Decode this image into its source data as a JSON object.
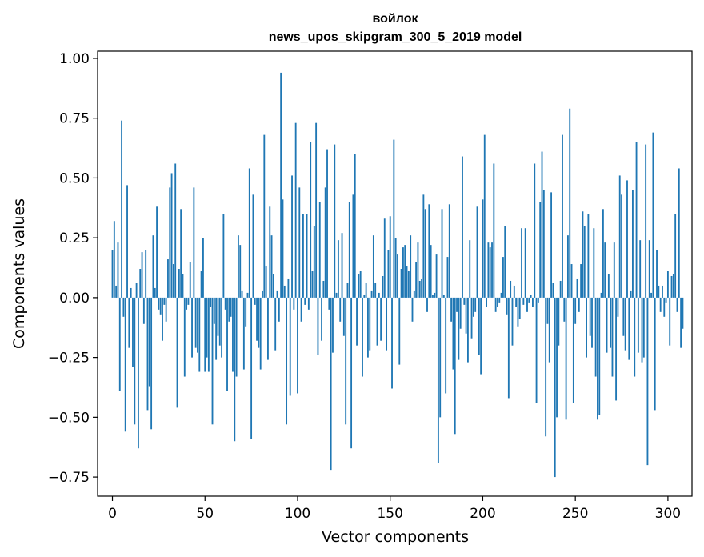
{
  "chart_data": {
    "type": "bar",
    "title": "войлок",
    "subtitle": "news_upos_skipgram_300_5_2019 model",
    "xlabel": "Vector components",
    "ylabel": "Components values",
    "xlim": [
      -8,
      313
    ],
    "ylim": [
      -0.83,
      1.03
    ],
    "xticks": [
      0,
      50,
      100,
      150,
      200,
      250,
      300
    ],
    "xtick_labels": [
      "0",
      "50",
      "100",
      "150",
      "200",
      "250",
      "300"
    ],
    "yticks": [
      1.0,
      0.75,
      0.5,
      0.25,
      0.0,
      -0.25,
      -0.5,
      -0.75
    ],
    "ytick_labels": [
      "1.00",
      "0.75",
      "0.50",
      "0.25",
      "0.00",
      "−0.25",
      "−0.50",
      "−0.75"
    ],
    "bar_color": "#1f77b4",
    "series": [
      {
        "name": "войлок",
        "values": [
          0.2,
          0.32,
          0.05,
          0.23,
          -0.39,
          0.74,
          -0.08,
          -0.56,
          0.47,
          -0.21,
          0.04,
          -0.29,
          -0.53,
          0.06,
          -0.63,
          0.12,
          0.19,
          -0.11,
          0.2,
          -0.47,
          -0.37,
          -0.55,
          0.26,
          0.04,
          0.38,
          -0.05,
          -0.07,
          -0.18,
          -0.03,
          -0.1,
          0.16,
          0.46,
          0.52,
          0.14,
          0.56,
          -0.46,
          0.12,
          0.37,
          0.1,
          -0.33,
          -0.05,
          -0.03,
          0.15,
          -0.25,
          0.46,
          -0.21,
          -0.23,
          -0.31,
          0.11,
          0.25,
          -0.31,
          -0.25,
          -0.31,
          -0.04,
          -0.53,
          -0.11,
          -0.26,
          -0.16,
          -0.2,
          -0.25,
          0.35,
          -0.05,
          -0.39,
          -0.1,
          -0.08,
          -0.31,
          -0.6,
          -0.33,
          0.26,
          0.22,
          0.03,
          -0.3,
          -0.12,
          0.02,
          0.54,
          -0.59,
          0.43,
          -0.03,
          -0.18,
          -0.21,
          -0.3,
          0.03,
          0.68,
          0.13,
          -0.26,
          0.38,
          0.26,
          0.1,
          -0.22,
          0.03,
          -0.1,
          0.94,
          0.41,
          0.05,
          -0.53,
          0.08,
          -0.41,
          0.51,
          -0.05,
          0.73,
          -0.4,
          0.46,
          -0.1,
          0.35,
          -0.03,
          0.35,
          -0.05,
          0.65,
          0.11,
          0.3,
          0.73,
          -0.24,
          0.4,
          -0.18,
          0.07,
          0.46,
          0.62,
          -0.05,
          -0.72,
          -0.23,
          0.64,
          0.02,
          0.24,
          -0.1,
          0.27,
          -0.16,
          -0.53,
          0.06,
          0.4,
          -0.63,
          0.43,
          0.6,
          -0.2,
          0.1,
          0.11,
          -0.33,
          0.01,
          0.06,
          -0.25,
          -0.22,
          0.03,
          0.26,
          0.06,
          -0.2,
          0.02,
          -0.18,
          0.09,
          0.33,
          -0.22,
          0.2,
          0.34,
          -0.38,
          0.66,
          0.25,
          0.18,
          -0.28,
          0.12,
          0.21,
          0.22,
          0.13,
          0.11,
          0.26,
          -0.1,
          0.03,
          0.15,
          0.23,
          0.07,
          0.08,
          0.43,
          0.37,
          -0.06,
          0.39,
          0.22,
          0.01,
          0.02,
          0.18,
          -0.69,
          -0.5,
          0.37,
          0.01,
          -0.4,
          0.17,
          0.39,
          -0.1,
          -0.3,
          -0.57,
          -0.06,
          -0.26,
          -0.13,
          0.59,
          -0.03,
          -0.15,
          -0.27,
          0.24,
          -0.17,
          -0.08,
          -0.06,
          0.38,
          -0.24,
          -0.32,
          0.41,
          0.68,
          -0.04,
          0.23,
          0.21,
          0.23,
          0.56,
          -0.06,
          -0.04,
          -0.02,
          0.02,
          0.17,
          0.3,
          -0.07,
          -0.42,
          0.07,
          -0.2,
          0.05,
          -0.04,
          -0.12,
          -0.09,
          0.29,
          -0.03,
          0.29,
          -0.06,
          -0.02,
          0.01,
          -0.04,
          0.56,
          -0.44,
          -0.02,
          0.4,
          0.61,
          0.45,
          -0.58,
          -0.11,
          -0.27,
          0.44,
          0.06,
          -0.75,
          -0.5,
          -0.2,
          0.07,
          0.68,
          -0.1,
          -0.51,
          0.26,
          0.79,
          0.14,
          -0.44,
          -0.11,
          0.08,
          -0.06,
          0.14,
          0.36,
          0.3,
          -0.25,
          0.35,
          -0.16,
          -0.21,
          0.29,
          -0.33,
          -0.51,
          -0.49,
          0.02,
          0.37,
          0.23,
          -0.23,
          0.1,
          -0.21,
          -0.33,
          0.23,
          -0.43,
          -0.08,
          0.51,
          0.43,
          -0.16,
          -0.22,
          0.49,
          -0.26,
          0.03,
          0.45,
          -0.33,
          0.65,
          -0.23,
          0.24,
          -0.27,
          -0.25,
          0.64,
          -0.7,
          0.24,
          0.02,
          0.69,
          -0.47,
          0.2,
          0.05,
          -0.06,
          0.05,
          -0.08,
          -0.02,
          0.11,
          -0.2,
          0.09,
          0.1,
          0.35,
          -0.06,
          0.54,
          -0.21,
          -0.13
        ]
      }
    ]
  }
}
